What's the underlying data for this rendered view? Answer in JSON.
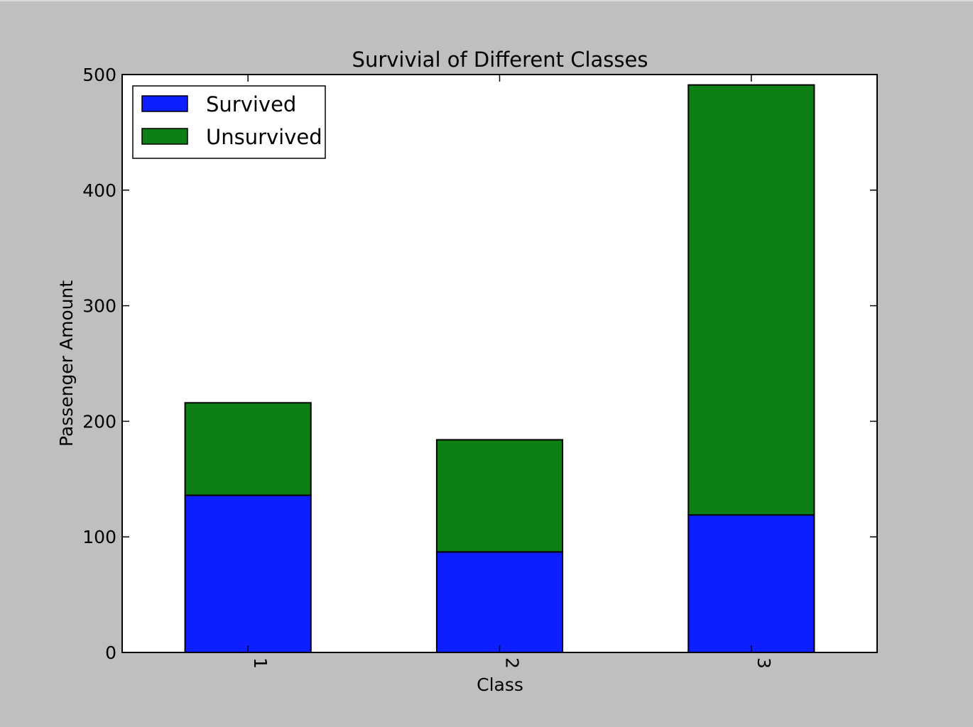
{
  "chart_data": {
    "type": "bar",
    "stacked": true,
    "title": "Survivial of Different Classes",
    "xlabel": "Class",
    "ylabel": "Passenger Amount",
    "categories": [
      "1",
      "2",
      "3"
    ],
    "series": [
      {
        "name": "Survived",
        "values": [
          136,
          87,
          119
        ],
        "color": "#0e1fff"
      },
      {
        "name": "Unsurvived",
        "values": [
          80,
          97,
          372
        ],
        "color": "#0e7f14"
      }
    ],
    "ylim": [
      0,
      500
    ],
    "yticks": [
      "0",
      "100",
      "200",
      "300",
      "400",
      "500"
    ],
    "legend_position": "top-left",
    "grid": false
  }
}
